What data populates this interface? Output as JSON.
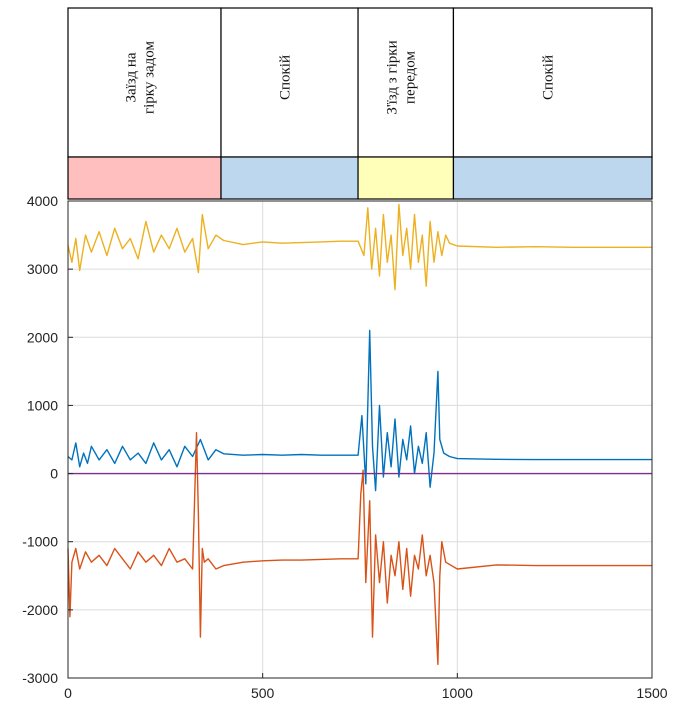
{
  "chart_data": {
    "type": "line",
    "title": "",
    "xlabel": "",
    "ylabel": "",
    "xlim": [
      0,
      1500
    ],
    "ylim": [
      -3000,
      4000
    ],
    "x_ticks": [
      "0",
      "500",
      "1000",
      "1500"
    ],
    "y_ticks": [
      "4000",
      "3000",
      "2000",
      "1000",
      "0",
      "-1000",
      "-2000",
      "-3000"
    ],
    "grid": true,
    "phases": [
      {
        "label_lines": [
          "Заїзд на",
          "гірку задом"
        ],
        "x_start": 0,
        "x_end": 393,
        "color": "#ffbfbf"
      },
      {
        "label_lines": [
          "Спокій"
        ],
        "x_start": 393,
        "x_end": 745,
        "color": "#bdd7ee"
      },
      {
        "label_lines": [
          "З'їзд з гірки",
          "передом"
        ],
        "x_start": 745,
        "x_end": 990,
        "color": "#ffffb9"
      },
      {
        "label_lines": [
          "Спокій"
        ],
        "x_start": 990,
        "x_end": 1500,
        "color": "#bdd7ee"
      }
    ],
    "series": [
      {
        "color": "#edb120",
        "x": [
          0,
          10,
          20,
          30,
          45,
          60,
          80,
          100,
          120,
          140,
          160,
          180,
          200,
          220,
          240,
          260,
          280,
          300,
          320,
          335,
          345,
          360,
          380,
          400,
          450,
          500,
          550,
          600,
          650,
          700,
          745,
          760,
          770,
          780,
          790,
          800,
          810,
          820,
          830,
          840,
          850,
          860,
          870,
          880,
          890,
          900,
          910,
          920,
          930,
          940,
          950,
          960,
          970,
          980,
          1000,
          1100,
          1200,
          1300,
          1400,
          1500
        ],
        "y": [
          3350,
          3100,
          3450,
          2980,
          3500,
          3250,
          3550,
          3200,
          3600,
          3300,
          3450,
          3150,
          3700,
          3250,
          3500,
          3300,
          3600,
          3250,
          3450,
          2950,
          3800,
          3300,
          3500,
          3420,
          3360,
          3400,
          3380,
          3390,
          3400,
          3410,
          3410,
          3200,
          3900,
          3000,
          3600,
          2900,
          3800,
          3100,
          3500,
          2700,
          3950,
          3200,
          3600,
          3000,
          3800,
          3100,
          3500,
          2750,
          3700,
          3100,
          3550,
          3200,
          3500,
          3380,
          3340,
          3320,
          3330,
          3320,
          3320,
          3320
        ]
      },
      {
        "color": "#0072bd",
        "x": [
          0,
          10,
          20,
          30,
          40,
          50,
          60,
          80,
          100,
          120,
          140,
          160,
          180,
          200,
          220,
          240,
          260,
          280,
          300,
          320,
          340,
          360,
          380,
          400,
          450,
          500,
          550,
          600,
          650,
          700,
          745,
          755,
          765,
          775,
          782,
          790,
          800,
          810,
          820,
          830,
          840,
          850,
          860,
          870,
          880,
          890,
          900,
          910,
          920,
          930,
          940,
          950,
          955,
          965,
          980,
          1000,
          1100,
          1200,
          1300,
          1400,
          1500
        ],
        "y": [
          250,
          200,
          450,
          100,
          300,
          150,
          400,
          200,
          350,
          150,
          400,
          200,
          300,
          150,
          450,
          200,
          350,
          100,
          400,
          250,
          500,
          200,
          350,
          290,
          270,
          280,
          270,
          280,
          270,
          270,
          270,
          850,
          -150,
          2100,
          400,
          -250,
          1000,
          -50,
          600,
          100,
          800,
          -50,
          500,
          200,
          700,
          0,
          400,
          150,
          600,
          -200,
          300,
          1500,
          500,
          300,
          250,
          220,
          210,
          205,
          205,
          205,
          205
        ]
      },
      {
        "color": "#d95319",
        "x": [
          0,
          5,
          10,
          20,
          30,
          45,
          60,
          80,
          100,
          120,
          140,
          160,
          180,
          200,
          220,
          240,
          260,
          280,
          300,
          320,
          330,
          335,
          340,
          345,
          350,
          360,
          380,
          400,
          450,
          500,
          550,
          600,
          650,
          700,
          745,
          752,
          758,
          765,
          775,
          782,
          790,
          800,
          810,
          820,
          830,
          840,
          850,
          860,
          870,
          880,
          890,
          900,
          910,
          920,
          930,
          940,
          950,
          955,
          960,
          970,
          1000,
          1100,
          1200,
          1300,
          1400,
          1500
        ],
        "y": [
          -1100,
          -2100,
          -1300,
          -1100,
          -1400,
          -1150,
          -1300,
          -1200,
          -1350,
          -1100,
          -1250,
          -1400,
          -1150,
          -1300,
          -1200,
          -1350,
          -1100,
          -1300,
          -1250,
          -1400,
          600,
          -600,
          -2400,
          -1100,
          -1300,
          -1250,
          -1400,
          -1350,
          -1300,
          -1280,
          -1270,
          -1270,
          -1260,
          -1250,
          -1250,
          -300,
          50,
          -1600,
          -400,
          -2400,
          -900,
          -1600,
          -1000,
          -1900,
          -1200,
          -1500,
          -1000,
          -1700,
          -1100,
          -1800,
          -1200,
          -1400,
          -900,
          -1500,
          -1200,
          -1600,
          -2800,
          -1500,
          -1000,
          -1300,
          -1400,
          -1340,
          -1350,
          -1350,
          -1350,
          -1350
        ]
      },
      {
        "color": "#7e2f8e",
        "x": [
          0,
          1500
        ],
        "y": [
          0,
          0
        ]
      }
    ]
  }
}
